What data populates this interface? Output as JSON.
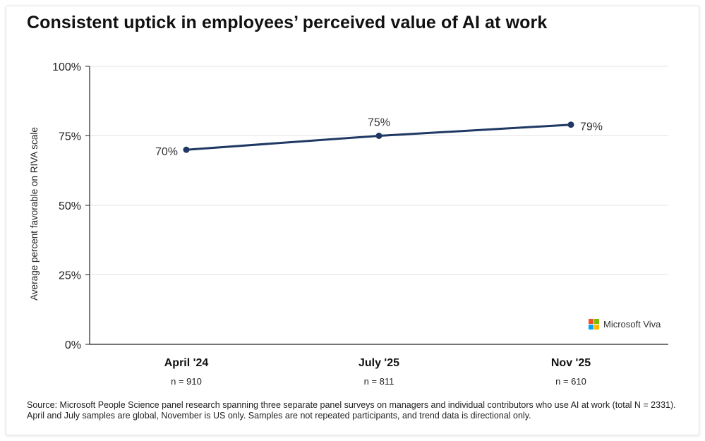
{
  "title": "Consistent uptick in employees’ perceived value of AI at work",
  "source_note": "Source: Microsoft People Science panel research spanning three separate panel surveys on managers and individual contributors who use AI at work (total N = 2331). April and July samples are global, November is US only. Samples are not repeated participants, and trend data is directional only.",
  "brand": {
    "name": "Microsoft Viva",
    "logo_colors": [
      "#f25022",
      "#7fba00",
      "#00a4ef",
      "#ffb900"
    ]
  },
  "colors": {
    "line": "#1f3864",
    "grid": "#e3e3e3",
    "axis": "#222222"
  },
  "chart_data": {
    "type": "line",
    "title": "Consistent uptick in employees’ perceived value of AI at work",
    "categories": [
      "April '24",
      "July '25",
      "Nov '25"
    ],
    "sample_sizes": [
      "n = 910",
      "n = 811",
      "n = 610"
    ],
    "series": [
      {
        "name": "Average percent favorable on RIVA scale",
        "values": [
          70,
          75,
          79
        ],
        "labels": [
          "70%",
          "75%",
          "79%"
        ]
      }
    ],
    "xlabel": "",
    "ylabel": "Average percent favorable on RIVA scale",
    "ylim": [
      0,
      100
    ],
    "yticks": [
      0,
      25,
      50,
      75,
      100
    ],
    "ytick_labels": [
      "0%",
      "25%",
      "50%",
      "75%",
      "100%"
    ],
    "grid": true,
    "legend": "none"
  }
}
